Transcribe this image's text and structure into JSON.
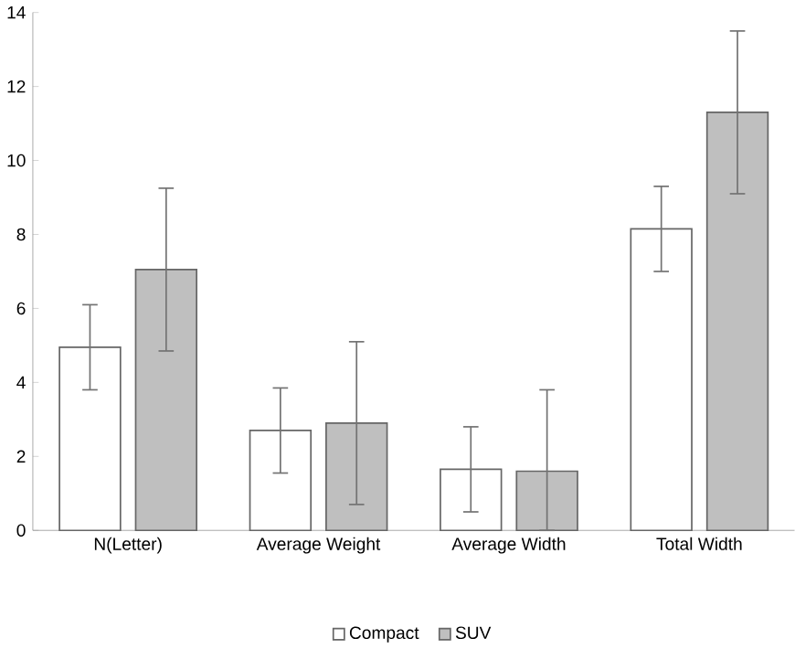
{
  "chart_data": {
    "type": "bar",
    "categories": [
      "N(Letter)",
      "Average Weight",
      "Average Width",
      "Total Width"
    ],
    "series": [
      {
        "name": "Compact",
        "color": "#ffffff",
        "values": [
          4.95,
          2.7,
          1.65,
          8.15
        ],
        "errors": [
          1.15,
          1.15,
          1.15,
          1.15
        ]
      },
      {
        "name": "SUV",
        "color": "#bfbfbf",
        "values": [
          7.05,
          2.9,
          1.6,
          11.3
        ],
        "errors": [
          2.2,
          2.2,
          [
            0,
            3.8
          ],
          2.2
        ]
      }
    ],
    "ylim": [
      0,
      14
    ],
    "yticks": [
      0,
      2,
      4,
      6,
      8,
      10,
      12,
      14
    ],
    "grid": false,
    "legend": "bottom"
  }
}
